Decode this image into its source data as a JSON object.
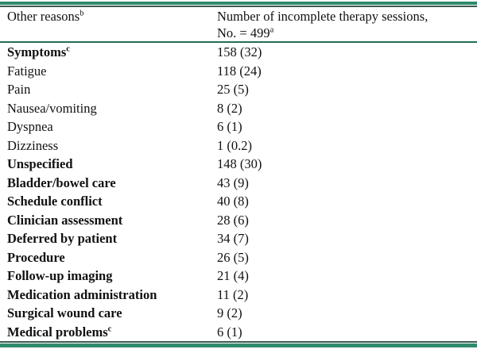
{
  "colors": {
    "accent_teal": "#2e8b6d",
    "rule_dark": "#3d5a4e",
    "header_separator": "#226e55",
    "text": "#111111",
    "background": "#ffffff"
  },
  "table": {
    "header": {
      "col1": "Other reasons",
      "col1_sup": "b",
      "col2_line1": "Number of incomplete therapy sessions,",
      "col2_line2": "No. = 499",
      "col2_sup": "a"
    },
    "rows": [
      {
        "label": "Symptoms",
        "sup": "c",
        "value": "158 (32)",
        "bold": true
      },
      {
        "label": "Fatigue",
        "sup": "",
        "value": "118 (24)",
        "bold": false
      },
      {
        "label": "Pain",
        "sup": "",
        "value": "25 (5)",
        "bold": false
      },
      {
        "label": "Nausea/vomiting",
        "sup": "",
        "value": "8 (2)",
        "bold": false
      },
      {
        "label": "Dyspnea",
        "sup": "",
        "value": "6 (1)",
        "bold": false
      },
      {
        "label": "Dizziness",
        "sup": "",
        "value": "1 (0.2)",
        "bold": false
      },
      {
        "label": "Unspecified",
        "sup": "",
        "value": "148 (30)",
        "bold": true
      },
      {
        "label": "Bladder/bowel care",
        "sup": "",
        "value": "43 (9)",
        "bold": true
      },
      {
        "label": "Schedule conflict",
        "sup": "",
        "value": "40 (8)",
        "bold": true
      },
      {
        "label": "Clinician assessment",
        "sup": "",
        "value": "28 (6)",
        "bold": true
      },
      {
        "label": "Deferred by patient",
        "sup": "",
        "value": "34 (7)",
        "bold": true
      },
      {
        "label": "Procedure",
        "sup": "",
        "value": "26 (5)",
        "bold": true
      },
      {
        "label": "Follow-up imaging",
        "sup": "",
        "value": "21 (4)",
        "bold": true
      },
      {
        "label": "Medication administration",
        "sup": "",
        "value": "11 (2)",
        "bold": true
      },
      {
        "label": "Surgical wound care",
        "sup": "",
        "value": "9 (2)",
        "bold": true
      },
      {
        "label": "Medical problems",
        "sup": "c",
        "value": "6 (1)",
        "bold": true
      }
    ]
  }
}
